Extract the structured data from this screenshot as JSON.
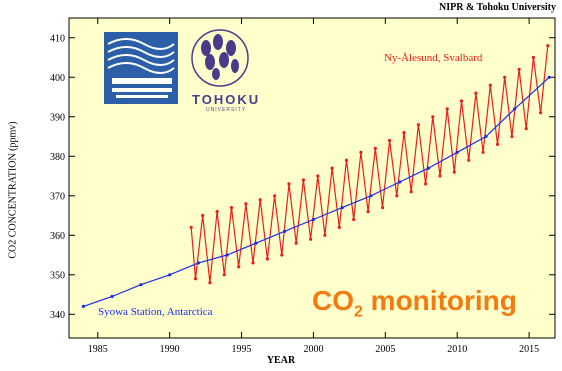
{
  "credit": "NIPR & Tohoku University",
  "logo": {
    "university_name": "TOHOKU",
    "university_sub": "UNIVERSITY"
  },
  "banner": {
    "prefix": "CO",
    "subscript": "2",
    "suffix": " monitoring"
  },
  "colors": {
    "background": "#ffffcc",
    "red": "#e8201a",
    "blue": "#1a2ee6",
    "banner": "#f57a10"
  },
  "chart_data": {
    "type": "line",
    "xlabel": "YEAR",
    "ylabel": "CO2 CONCENTRATION (ppmv)",
    "xlim": [
      1983,
      2016.8
    ],
    "ylim": [
      334,
      415
    ],
    "xticks": [
      1985,
      1990,
      1995,
      2000,
      2005,
      2010,
      2015
    ],
    "yticks": [
      340,
      350,
      360,
      370,
      380,
      390,
      400,
      410
    ],
    "grid": false,
    "series": [
      {
        "name": "Ny-Ålesund, Svalbard",
        "color": "#e8201a",
        "x": [
          1991.5,
          1991.8,
          1992.3,
          1992.8,
          1993.3,
          1993.8,
          1994.3,
          1994.8,
          1995.3,
          1995.8,
          1996.3,
          1996.8,
          1997.3,
          1997.8,
          1998.3,
          1998.8,
          1999.3,
          1999.8,
          2000.3,
          2000.8,
          2001.3,
          2001.8,
          2002.3,
          2002.8,
          2003.3,
          2003.8,
          2004.3,
          2004.8,
          2005.3,
          2005.8,
          2006.3,
          2006.8,
          2007.3,
          2007.8,
          2008.3,
          2008.8,
          2009.3,
          2009.8,
          2010.3,
          2010.8,
          2011.3,
          2011.8,
          2012.3,
          2012.8,
          2013.3,
          2013.8,
          2014.3,
          2014.8,
          2015.3,
          2015.8,
          2016.3
        ],
        "y": [
          362,
          349,
          365,
          348,
          366,
          350,
          367,
          352,
          368,
          353,
          369,
          354,
          370,
          355,
          373,
          358,
          374,
          359,
          375,
          360,
          377,
          362,
          379,
          364,
          381,
          366,
          382,
          367,
          384,
          370,
          386,
          371,
          388,
          373,
          390,
          375,
          392,
          376,
          394,
          379,
          396,
          381,
          398,
          383,
          400,
          385,
          402,
          387,
          405,
          391,
          408
        ]
      },
      {
        "name": "Syowa Station, Antarctica",
        "color": "#1a2ee6",
        "x": [
          1984,
          1986,
          1988,
          1990,
          1992,
          1994,
          1996,
          1998,
          2000,
          2002,
          2004,
          2006,
          2008,
          2010,
          2012,
          2014,
          2016.4
        ],
        "y": [
          342,
          344.5,
          347.5,
          350,
          353,
          355,
          358,
          361,
          364,
          367,
          370,
          373.5,
          377,
          381,
          385,
          392,
          400
        ]
      }
    ]
  }
}
